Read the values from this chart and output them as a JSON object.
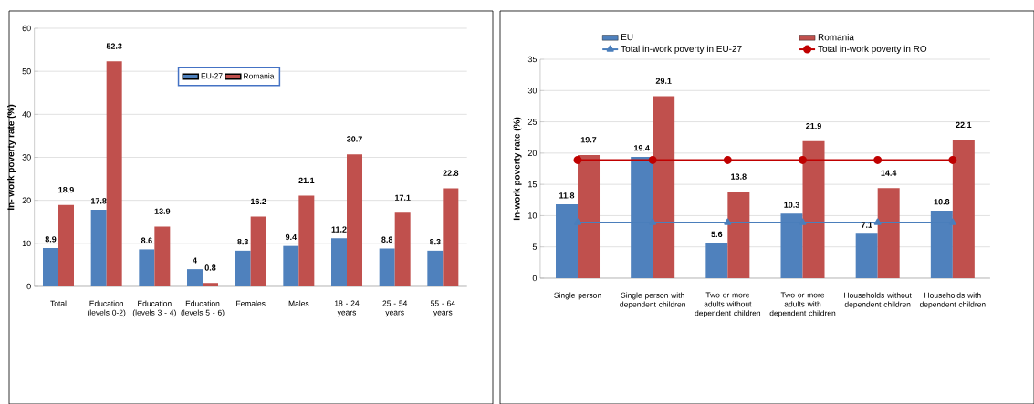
{
  "chart_data": [
    {
      "type": "bar",
      "ylabel": "In- work poverty rate (%)",
      "categories": [
        "Total",
        "Education (levels 0-2)",
        "Education (levels 3 - 4)",
        "Education (levels 5 - 6)",
        "Females",
        "Males",
        "18 - 24 years",
        "25 - 54 years",
        "55 - 64 years"
      ],
      "series": [
        {
          "name": "EU-27",
          "color": "#4f81bd",
          "values": [
            8.9,
            17.8,
            8.6,
            4,
            8.3,
            9.4,
            11.2,
            8.8,
            8.3
          ]
        },
        {
          "name": "Romania",
          "color": "#c0504d",
          "values": [
            18.9,
            52.3,
            13.9,
            0.8,
            16.2,
            21.1,
            30.7,
            17.1,
            22.8
          ]
        }
      ],
      "ylim": [
        0,
        60
      ],
      "yticks": [
        0,
        10,
        20,
        30,
        40,
        50,
        60
      ],
      "grid": "y",
      "legend": "top",
      "data_labels": true
    },
    {
      "type": "bar",
      "ylabel": "In-work poverty rate (%)",
      "categories": [
        "Single person",
        "Single person with dependent children",
        "Two or more adults without dependent children",
        "Two or more adults with dependent children",
        "Households without dependent children",
        "Households with dependent children"
      ],
      "series": [
        {
          "name": "EU",
          "color": "#4f81bd",
          "values": [
            11.8,
            19.4,
            5.6,
            10.3,
            7.1,
            10.8
          ],
          "value_labels": [
            "11.8",
            "19.4",
            "5.6",
            "10.3",
            "7.1",
            "10.8"
          ]
        },
        {
          "name": "Romania",
          "color": "#c0504d",
          "values": [
            19.7,
            29.1,
            13.8,
            21.9,
            14.4,
            22.1
          ],
          "value_labels": [
            "19.7",
            "29.1",
            "13.8",
            "21.9",
            "14.4",
            "22.1"
          ]
        },
        {
          "name": "Total in-work poverty in EU-27",
          "type": "line",
          "color": "#4a7ebb",
          "marker": "triangle",
          "values": [
            8.9,
            8.9,
            8.9,
            8.9,
            8.9,
            8.9
          ]
        },
        {
          "name": "Total in-work poverty in RO",
          "type": "line",
          "color": "#c00000",
          "marker": "circle",
          "values": [
            18.9,
            18.9,
            18.9,
            18.9,
            18.9,
            18.9
          ]
        }
      ],
      "ylim": [
        0,
        35
      ],
      "yticks": [
        0,
        5,
        10,
        15,
        20,
        25,
        30,
        35
      ],
      "grid": "y",
      "legend": "top"
    }
  ]
}
